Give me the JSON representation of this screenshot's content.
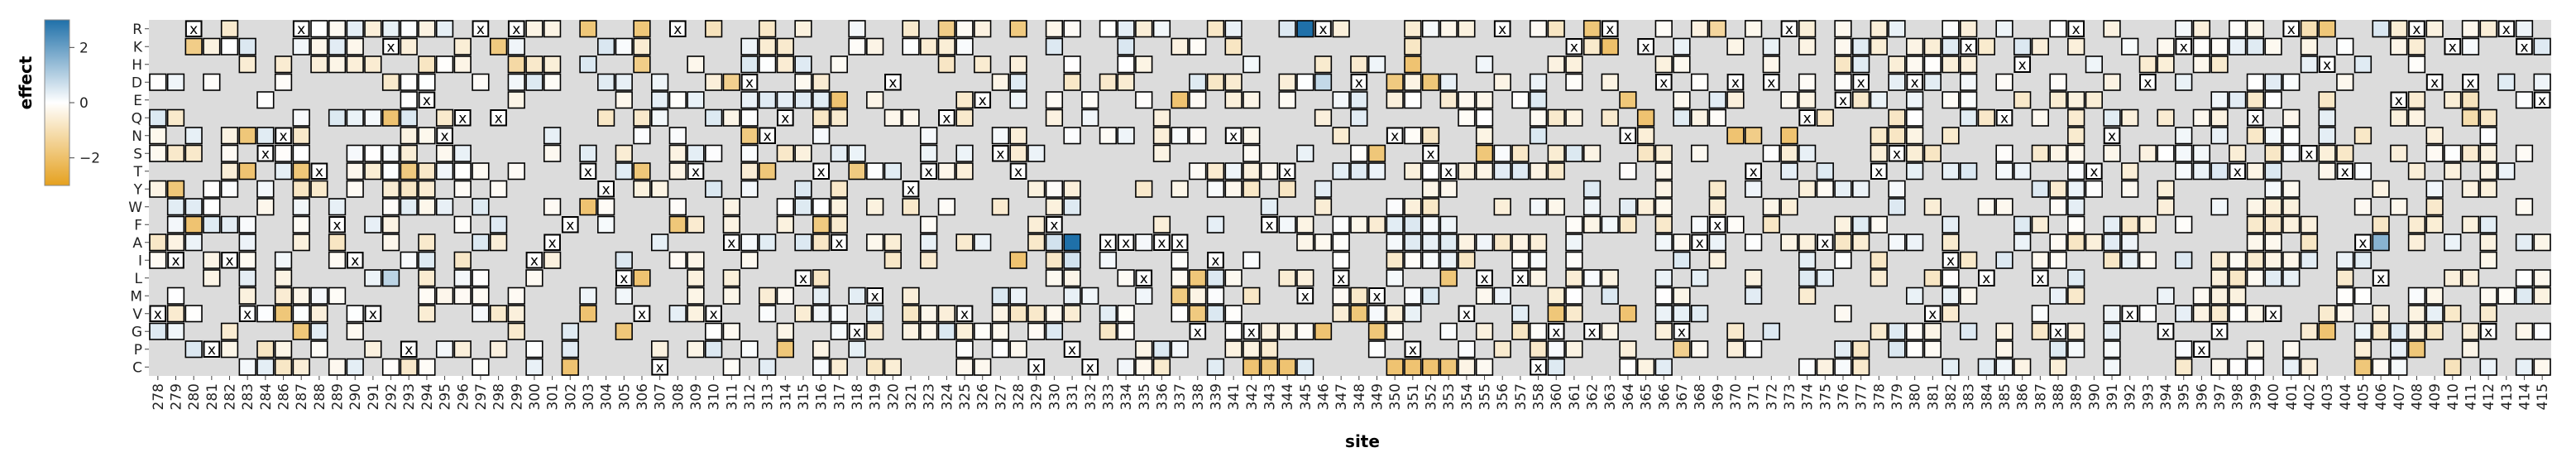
{
  "chart_data": {
    "type": "heatmap",
    "xlabel": "site",
    "ylabel": "",
    "legend": {
      "title": "effect",
      "ticks": [
        "2",
        "0",
        "−2"
      ],
      "tick_values": [
        2,
        0,
        -2
      ],
      "range": [
        -3,
        3
      ],
      "colors": {
        "negative": "#e5a11f",
        "zero": "#ffffff",
        "positive": "#1f70a9"
      },
      "placement": "left"
    },
    "missing_color": "#dcdcdc",
    "wildtype_marker": "x",
    "rows": [
      "R",
      "K",
      "H",
      "D",
      "E",
      "Q",
      "N",
      "S",
      "T",
      "Y",
      "W",
      "F",
      "A",
      "I",
      "L",
      "M",
      "V",
      "G",
      "P",
      "C"
    ],
    "sites": [
      "278",
      "279",
      "280",
      "281",
      "282",
      "283",
      "284",
      "286",
      "287",
      "288",
      "289",
      "290",
      "291",
      "292",
      "293",
      "294",
      "295",
      "296",
      "297",
      "298",
      "299",
      "300",
      "301",
      "302",
      "303",
      "304",
      "305",
      "306",
      "307",
      "308",
      "309",
      "310",
      "311",
      "312",
      "313",
      "314",
      "315",
      "316",
      "317",
      "318",
      "319",
      "320",
      "321",
      "323",
      "324",
      "325",
      "326",
      "327",
      "328",
      "329",
      "330",
      "331",
      "332",
      "333",
      "334",
      "335",
      "336",
      "337",
      "338",
      "339",
      "341",
      "342",
      "343",
      "344",
      "345",
      "346",
      "347",
      "348",
      "349",
      "350",
      "351",
      "352",
      "353",
      "354",
      "355",
      "356",
      "357",
      "358",
      "360",
      "361",
      "362",
      "363",
      "364",
      "365",
      "366",
      "367",
      "368",
      "369",
      "370",
      "371",
      "372",
      "373",
      "374",
      "375",
      "376",
      "377",
      "378",
      "379",
      "380",
      "381",
      "382",
      "383",
      "384",
      "385",
      "386",
      "387",
      "388",
      "389",
      "390",
      "391",
      "392",
      "393",
      "394",
      "395",
      "396",
      "397",
      "398",
      "399",
      "400",
      "401",
      "402",
      "403",
      "404",
      "405",
      "406",
      "407",
      "408",
      "409",
      "410",
      "411",
      "412",
      "413",
      "414",
      "415"
    ],
    "wildtype": [
      "V",
      "I",
      "R",
      "P",
      "I",
      "V",
      "S",
      "N",
      "R",
      "T",
      "F",
      "I",
      "V",
      "K",
      "P",
      "E",
      "N",
      "Q",
      "R",
      "Q",
      "R",
      "I",
      "A",
      "F",
      "T",
      "Y",
      "L",
      "V",
      "C",
      "R",
      "T",
      "V",
      "A",
      "D",
      "N",
      "Q",
      "L",
      "T",
      "A",
      "G",
      "M",
      "D",
      "Y",
      "T",
      "Q",
      "V",
      "E",
      "S",
      "T",
      "C",
      "F",
      "P",
      "C",
      "A",
      "A",
      "L",
      "A",
      "A",
      "G",
      "I",
      "N",
      "G",
      "F",
      "T",
      "M",
      "R",
      "L",
      "D",
      "M",
      "N",
      "P",
      "S",
      "T",
      "V",
      "L",
      "R",
      "L",
      "C",
      "G",
      "K",
      "G",
      "R",
      "N",
      "K",
      "D",
      "G",
      "A",
      "F",
      "D",
      "T",
      "D",
      "R",
      "Q",
      "A",
      "E",
      "D",
      "T",
      "S",
      "D",
      "V",
      "I",
      "K",
      "L",
      "Q",
      "H",
      "L",
      "G",
      "R",
      "T",
      "N",
      "V",
      "D",
      "G",
      "K",
      "P",
      "G",
      "T",
      "Q",
      "V",
      "R",
      "S",
      "H",
      "T",
      "A",
      "L",
      "E",
      "R",
      "D",
      "K",
      "D",
      "G",
      "R",
      "K",
      "E"
    ],
    "cells": [
      {
        "site": "287",
        "aa": "R",
        "effect": -1.9
      },
      {
        "site": "303",
        "aa": "R",
        "effect": -1.8
      },
      {
        "site": "306",
        "aa": "R",
        "effect": -1.8
      },
      {
        "site": "310",
        "aa": "R",
        "effect": -0.9
      },
      {
        "site": "324",
        "aa": "R",
        "effect": -1.6
      },
      {
        "site": "326",
        "aa": "R",
        "effect": -0.4
      },
      {
        "site": "328",
        "aa": "R",
        "effect": -1.7
      },
      {
        "site": "345",
        "aa": "R",
        "effect": 3.0
      },
      {
        "site": "360",
        "aa": "R",
        "effect": -0.8
      },
      {
        "site": "362",
        "aa": "R",
        "effect": -1.8
      },
      {
        "site": "363",
        "aa": "R",
        "effect": -2.0
      },
      {
        "site": "368",
        "aa": "R",
        "effect": -0.4
      },
      {
        "site": "369",
        "aa": "R",
        "effect": -1.3
      },
      {
        "site": "373",
        "aa": "R",
        "effect": 0.4
      },
      {
        "site": "383",
        "aa": "R",
        "effect": -0.5
      },
      {
        "site": "391",
        "aa": "R",
        "effect": -0.4
      },
      {
        "site": "402",
        "aa": "R",
        "effect": -1.0
      },
      {
        "site": "403",
        "aa": "R",
        "effect": -1.8
      },
      {
        "site": "406",
        "aa": "R",
        "effect": 0.5
      },
      {
        "site": "280",
        "aa": "K",
        "effect": -1.6
      },
      {
        "site": "293",
        "aa": "K",
        "effect": -0.5
      },
      {
        "site": "298",
        "aa": "K",
        "effect": -1.7
      },
      {
        "site": "304",
        "aa": "K",
        "effect": 0.5
      },
      {
        "site": "323",
        "aa": "K",
        "effect": -0.6
      },
      {
        "site": "363",
        "aa": "K",
        "effect": -2.0
      },
      {
        "site": "372",
        "aa": "K",
        "effect": 0.3
      },
      {
        "site": "387",
        "aa": "K",
        "effect": -0.5
      },
      {
        "site": "288",
        "aa": "H",
        "effect": -0.5
      },
      {
        "site": "291",
        "aa": "H",
        "effect": -0.6
      },
      {
        "site": "294",
        "aa": "H",
        "effect": -0.8
      },
      {
        "site": "299",
        "aa": "H",
        "effect": -1.2
      },
      {
        "site": "300",
        "aa": "H",
        "effect": -0.7
      },
      {
        "site": "306",
        "aa": "H",
        "effect": -1.6
      },
      {
        "site": "351",
        "aa": "H",
        "effect": -1.9
      },
      {
        "site": "393",
        "aa": "H",
        "effect": -0.6
      },
      {
        "site": "402",
        "aa": "H",
        "effect": 0.3
      },
      {
        "site": "311",
        "aa": "D",
        "effect": -1.5
      },
      {
        "site": "350",
        "aa": "D",
        "effect": -1.7
      },
      {
        "site": "352",
        "aa": "D",
        "effect": -1.8
      },
      {
        "site": "346",
        "aa": "D",
        "effect": 0.8
      },
      {
        "site": "409",
        "aa": "D",
        "effect": -0.6
      },
      {
        "site": "413",
        "aa": "D",
        "effect": 0.4
      },
      {
        "site": "317",
        "aa": "E",
        "effect": -1.9
      },
      {
        "site": "337",
        "aa": "E",
        "effect": -1.9
      },
      {
        "site": "364",
        "aa": "E",
        "effect": -1.8
      },
      {
        "site": "411",
        "aa": "E",
        "effect": -0.9
      },
      {
        "site": "292",
        "aa": "Q",
        "effect": -1.9
      },
      {
        "site": "365",
        "aa": "Q",
        "effect": -1.9
      },
      {
        "site": "394",
        "aa": "Q",
        "effect": -0.6
      },
      {
        "site": "411",
        "aa": "Q",
        "effect": -1.1
      },
      {
        "site": "283",
        "aa": "N",
        "effect": -1.8
      },
      {
        "site": "286",
        "aa": "N",
        "effect": -1.8
      },
      {
        "site": "312",
        "aa": "N",
        "effect": -1.7
      },
      {
        "site": "370",
        "aa": "N",
        "effect": -1.9
      },
      {
        "site": "371",
        "aa": "N",
        "effect": -1.6
      },
      {
        "site": "373",
        "aa": "N",
        "effect": -1.9
      },
      {
        "site": "279",
        "aa": "S",
        "effect": -0.7
      },
      {
        "site": "349",
        "aa": "S",
        "effect": -1.8
      },
      {
        "site": "355",
        "aa": "S",
        "effect": -1.8
      },
      {
        "site": "283",
        "aa": "T",
        "effect": -1.9
      },
      {
        "site": "287",
        "aa": "T",
        "effect": -1.8
      },
      {
        "site": "293",
        "aa": "T",
        "effect": -1.7
      },
      {
        "site": "306",
        "aa": "T",
        "effect": -1.8
      },
      {
        "site": "313",
        "aa": "T",
        "effect": -1.8
      },
      {
        "site": "318",
        "aa": "T",
        "effect": -1.7
      },
      {
        "site": "279",
        "aa": "Y",
        "effect": -1.8
      },
      {
        "site": "303",
        "aa": "W",
        "effect": -1.9
      },
      {
        "site": "280",
        "aa": "F",
        "effect": -1.9
      },
      {
        "site": "308",
        "aa": "F",
        "effect": -1.8
      },
      {
        "site": "316",
        "aa": "F",
        "effect": -1.7
      },
      {
        "site": "330",
        "aa": "A",
        "effect": 0.6
      },
      {
        "site": "331",
        "aa": "A",
        "effect": 3.0
      },
      {
        "site": "406",
        "aa": "A",
        "effect": 1.6
      },
      {
        "site": "328",
        "aa": "I",
        "effect": -1.9
      },
      {
        "site": "331",
        "aa": "I",
        "effect": 0.6
      },
      {
        "site": "292",
        "aa": "L",
        "effect": 0.9
      },
      {
        "site": "306",
        "aa": "L",
        "effect": -1.9
      },
      {
        "site": "338",
        "aa": "L",
        "effect": -1.8
      },
      {
        "site": "353",
        "aa": "L",
        "effect": -1.8
      },
      {
        "site": "400",
        "aa": "L",
        "effect": 0.4
      },
      {
        "site": "337",
        "aa": "M",
        "effect": -1.7
      },
      {
        "site": "286",
        "aa": "V",
        "effect": -1.8
      },
      {
        "site": "303",
        "aa": "V",
        "effect": -1.9
      },
      {
        "site": "338",
        "aa": "V",
        "effect": -1.7
      },
      {
        "site": "348",
        "aa": "V",
        "effect": -1.8
      },
      {
        "site": "360",
        "aa": "V",
        "effect": -1.8
      },
      {
        "site": "364",
        "aa": "V",
        "effect": -1.9
      },
      {
        "site": "287",
        "aa": "G",
        "effect": -1.8
      },
      {
        "site": "305",
        "aa": "G",
        "effect": -1.8
      },
      {
        "site": "346",
        "aa": "G",
        "effect": -1.9
      },
      {
        "site": "349",
        "aa": "G",
        "effect": -1.8
      },
      {
        "site": "403",
        "aa": "G",
        "effect": -1.9
      },
      {
        "site": "314",
        "aa": "P",
        "effect": -1.8
      },
      {
        "site": "367",
        "aa": "P",
        "effect": -1.5
      },
      {
        "site": "408",
        "aa": "P",
        "effect": -1.8
      },
      {
        "site": "302",
        "aa": "C",
        "effect": -1.9
      },
      {
        "site": "342",
        "aa": "C",
        "effect": -1.9
      },
      {
        "site": "343",
        "aa": "C",
        "effect": -1.8
      },
      {
        "site": "344",
        "aa": "C",
        "effect": -1.9
      },
      {
        "site": "350",
        "aa": "C",
        "effect": -1.9
      },
      {
        "site": "351",
        "aa": "C",
        "effect": -1.9
      },
      {
        "site": "352",
        "aa": "C",
        "effect": -1.9
      },
      {
        "site": "353",
        "aa": "C",
        "effect": -1.8
      },
      {
        "site": "405",
        "aa": "C",
        "effect": -1.8
      },
      {
        "site": "410",
        "aa": "C",
        "effect": -0.9
      }
    ]
  }
}
